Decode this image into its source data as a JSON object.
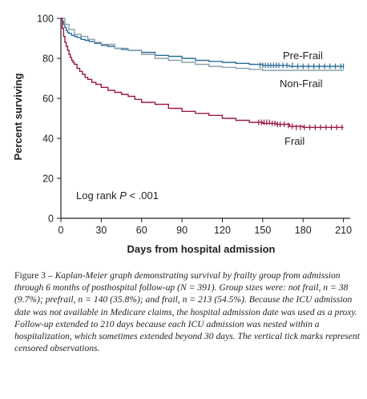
{
  "chart_data": {
    "type": "line",
    "subtype": "kaplan-meier survival curve",
    "xlabel": "Days from hospital admission",
    "ylabel": "Percent surviving",
    "xlim": [
      0,
      215
    ],
    "ylim": [
      0,
      100
    ],
    "xticks": [
      0,
      30,
      60,
      90,
      120,
      150,
      180,
      210
    ],
    "yticks": [
      0,
      20,
      40,
      60,
      80,
      100
    ],
    "grid": false,
    "legend": "inline labels at right ends of curves",
    "annotation": "Log rank P < .001",
    "series": [
      {
        "name": "Pre-Frail",
        "color": "#2a6f97",
        "x": [
          0,
          1,
          2,
          3,
          4,
          5,
          6,
          8,
          10,
          12,
          15,
          18,
          21,
          25,
          30,
          35,
          40,
          45,
          50,
          60,
          70,
          80,
          90,
          100,
          110,
          120,
          130,
          140,
          150,
          160,
          170,
          180,
          190,
          200,
          210
        ],
        "y": [
          100,
          98.5,
          97,
          95.5,
          94,
          93,
          92.5,
          91.5,
          91,
          90.5,
          89.5,
          89,
          88.5,
          87.5,
          86.5,
          86,
          85,
          84.5,
          84,
          83,
          81.5,
          81,
          80,
          79,
          78.5,
          78,
          77.5,
          77,
          76.5,
          76.5,
          76,
          76,
          76,
          76,
          76
        ],
        "censor_x": [
          148,
          150,
          152,
          154,
          156,
          158,
          160,
          162,
          165,
          168,
          172,
          176,
          180,
          184,
          188,
          192,
          196,
          200,
          204,
          208,
          210
        ],
        "censor_y": [
          76.5,
          76.5,
          76.5,
          76.5,
          76.5,
          76.5,
          76.5,
          76.5,
          76.5,
          76.5,
          76.5,
          76,
          76,
          76,
          76,
          76,
          76,
          76,
          76,
          76,
          76
        ]
      },
      {
        "name": "Non-Frail",
        "color": "#8aa1ac",
        "x": [
          0,
          3,
          6,
          10,
          15,
          20,
          25,
          30,
          40,
          50,
          60,
          70,
          80,
          90,
          100,
          110,
          120,
          130,
          140,
          150,
          160,
          170,
          180,
          190,
          200,
          210
        ],
        "y": [
          100,
          97,
          94.5,
          92,
          91,
          89.5,
          88,
          87,
          85,
          84,
          82,
          80,
          79,
          78,
          77,
          76,
          75.5,
          75,
          74.5,
          74,
          74,
          74,
          74,
          74,
          74,
          74
        ],
        "censor_x": [],
        "censor_y": []
      },
      {
        "name": "Frail",
        "color": "#9b1b4b",
        "x": [
          0,
          1,
          2,
          3,
          4,
          5,
          6,
          7,
          8,
          9,
          10,
          12,
          14,
          16,
          18,
          20,
          23,
          26,
          30,
          35,
          40,
          45,
          50,
          55,
          60,
          70,
          80,
          90,
          100,
          110,
          120,
          130,
          140,
          150,
          160,
          170,
          180,
          190,
          200,
          210
        ],
        "y": [
          100,
          95,
          91,
          88,
          86,
          84,
          82,
          80.5,
          79,
          78,
          77,
          75,
          73.5,
          72,
          70.5,
          69.5,
          68,
          67,
          65.5,
          64,
          63,
          62,
          61,
          59.5,
          58,
          57,
          55,
          53.5,
          52.5,
          51.5,
          50,
          49,
          48,
          47.5,
          47,
          46,
          45.5,
          45.5,
          45.5,
          45.5
        ],
        "censor_x": [
          147,
          149,
          151,
          153,
          155,
          157,
          159,
          161,
          163,
          166,
          169,
          172,
          175,
          178,
          181,
          185,
          189,
          193,
          197,
          201,
          205,
          209
        ],
        "censor_y": [
          48,
          48,
          48,
          48,
          48,
          47.5,
          47.5,
          47,
          47,
          47,
          46.5,
          46,
          45.5,
          45.5,
          45.5,
          45.5,
          45.5,
          45.5,
          45.5,
          45.5,
          45.5,
          45.5
        ]
      }
    ]
  },
  "caption": {
    "label": "Figure 3 –",
    "text": "Kaplan-Meier graph demonstrating survival by frailty group from admission through 6 months of posthospital follow-up (N = 391). Group sizes were: not frail, n = 38 (9.7%); prefrail, n = 140 (35.8%); and frail, n = 213 (54.5%). Because the ICU admission date was not available in Medicare claims, the hospital admission date was used as a proxy. Follow-up extended to 210 days because each ICU admission was nested within a hospitalization, which sometimes extended beyond 30 days. The vertical tick marks represent censored observations."
  }
}
